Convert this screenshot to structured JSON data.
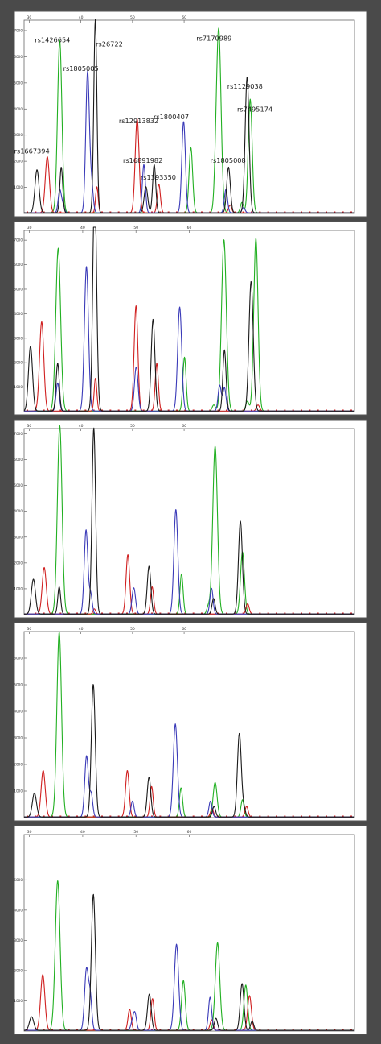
{
  "colors": {
    "black": "#1a1a1a",
    "blue": "#3a3ab8",
    "green": "#22b022",
    "red": "#d02020",
    "frame": "#555555",
    "page_bg": "#4a4a4a"
  },
  "chart_data": [
    {
      "type": "line",
      "panel": 1,
      "xlim": [
        29,
        93
      ],
      "ylim": [
        0,
        7400
      ],
      "x_ticks": [
        "30",
        "40",
        "50",
        "60"
      ],
      "y_ticks": [
        "1000",
        "2000",
        "3000",
        "4000",
        "5000",
        "6000",
        "7000"
      ],
      "labels": [
        {
          "text": "rs1667394",
          "x": 30.5,
          "y": 2300
        },
        {
          "text": "rs1426654",
          "x": 34.5,
          "y": 6550
        },
        {
          "text": "rs1805005",
          "x": 40,
          "y": 5450
        },
        {
          "text": "rs26722",
          "x": 45.5,
          "y": 6400
        },
        {
          "text": "rs12913832",
          "x": 51.2,
          "y": 3450
        },
        {
          "text": "rs16891982",
          "x": 52,
          "y": 1950
        },
        {
          "text": "rs1393350",
          "x": 55,
          "y": 1300
        },
        {
          "text": "rs1800407",
          "x": 57.5,
          "y": 3600
        },
        {
          "text": "rs7170989",
          "x": 65.8,
          "y": 6620
        },
        {
          "text": "rs1805008",
          "x": 68.5,
          "y": 1950
        },
        {
          "text": "rs1129038",
          "x": 71.8,
          "y": 4780
        },
        {
          "text": "rs7495174",
          "x": 73.7,
          "y": 3900
        }
      ],
      "series": [
        {
          "color": "black",
          "peaks": [
            [
              31.5,
              1650,
              0.4
            ],
            [
              36.2,
              1750,
              0.28
            ],
            [
              42.8,
              7400,
              0.3
            ],
            [
              52.6,
              1000,
              0.35
            ],
            [
              54.2,
              1850,
              0.3
            ],
            [
              68.6,
              1750,
              0.35
            ],
            [
              72.2,
              5200,
              0.38
            ]
          ]
        },
        {
          "color": "blue",
          "peaks": [
            [
              35.9,
              850,
              0.3
            ],
            [
              36.5,
              300,
              0.3
            ],
            [
              41.3,
              5400,
              0.35
            ],
            [
              42.1,
              1000,
              0.3
            ],
            [
              52.2,
              1850,
              0.3
            ],
            [
              59.9,
              3500,
              0.35
            ],
            [
              68.1,
              900,
              0.3
            ],
            [
              71.5,
              200,
              0.3
            ]
          ]
        },
        {
          "color": "green",
          "peaks": [
            [
              35.9,
              6600,
              0.42
            ],
            [
              61.3,
              2500,
              0.35
            ],
            [
              66.7,
              7000,
              0.45
            ],
            [
              66.1,
              500,
              0.3
            ],
            [
              72.8,
              4350,
              0.38
            ],
            [
              71.2,
              400,
              0.3
            ]
          ]
        },
        {
          "color": "red",
          "peaks": [
            [
              33.5,
              2150,
              0.4
            ],
            [
              43.1,
              1000,
              0.25
            ],
            [
              50.9,
              3600,
              0.38
            ],
            [
              55.1,
              1100,
              0.3
            ],
            [
              68.9,
              300,
              0.3
            ]
          ]
        }
      ]
    },
    {
      "type": "line",
      "panel": 2,
      "xlim": [
        29,
        91
      ],
      "ylim": [
        0,
        7400
      ],
      "x_ticks": [
        "30",
        "40",
        "50",
        "60"
      ],
      "y_ticks": [
        "1000",
        "2000",
        "3000",
        "4000",
        "5000",
        "6000",
        "7000"
      ],
      "series": [
        {
          "color": "black",
          "peaks": [
            [
              30.2,
              2650,
              0.38
            ],
            [
              35.3,
              1950,
              0.3
            ],
            [
              42.3,
              7250,
              0.35
            ],
            [
              42.1,
              2500,
              0.3
            ],
            [
              53.2,
              3750,
              0.35
            ],
            [
              66.6,
              2500,
              0.3
            ],
            [
              71.6,
              5300,
              0.4
            ]
          ]
        },
        {
          "color": "blue",
          "peaks": [
            [
              35.3,
              1150,
              0.3
            ],
            [
              40.7,
              5900,
              0.38
            ],
            [
              49.9,
              1050,
              0.3
            ],
            [
              50.2,
              1000,
              0.3
            ],
            [
              58.2,
              4250,
              0.38
            ],
            [
              65.7,
              1050,
              0.3
            ],
            [
              66.6,
              950,
              0.3
            ]
          ]
        },
        {
          "color": "green",
          "peaks": [
            [
              35.4,
              6650,
              0.45
            ],
            [
              59.1,
              2200,
              0.3
            ],
            [
              66.5,
              7000,
              0.45
            ],
            [
              72.5,
              7050,
              0.4
            ],
            [
              64.6,
              250,
              0.3
            ],
            [
              70.9,
              400,
              0.3
            ]
          ]
        },
        {
          "color": "red",
          "peaks": [
            [
              32.3,
              3650,
              0.4
            ],
            [
              42.4,
              1350,
              0.25
            ],
            [
              50.0,
              4300,
              0.35
            ],
            [
              53.9,
              1950,
              0.3
            ],
            [
              72.9,
              250,
              0.3
            ]
          ]
        }
      ]
    },
    {
      "type": "line",
      "panel": 3,
      "xlim": [
        29,
        93
      ],
      "ylim": [
        0,
        7200
      ],
      "x_ticks": [
        "30",
        "40",
        "50",
        "60"
      ],
      "y_ticks": [
        "1000",
        "2000",
        "3000",
        "4000",
        "5000",
        "6000",
        "7000"
      ],
      "series": [
        {
          "color": "black",
          "peaks": [
            [
              30.8,
              1350,
              0.4
            ],
            [
              35.8,
              1050,
              0.28
            ],
            [
              42.5,
              7200,
              0.35
            ],
            [
              53.2,
              1850,
              0.35
            ],
            [
              65.7,
              600,
              0.3
            ],
            [
              70.9,
              3600,
              0.38
            ]
          ]
        },
        {
          "color": "blue",
          "peaks": [
            [
              41.0,
              3250,
              0.35
            ],
            [
              41.9,
              750,
              0.3
            ],
            [
              50.1,
              600,
              0.3
            ],
            [
              50.4,
              550,
              0.3
            ],
            [
              58.4,
              4050,
              0.38
            ],
            [
              65.3,
              1000,
              0.3
            ]
          ]
        },
        {
          "color": "green",
          "peaks": [
            [
              35.9,
              7300,
              0.45
            ],
            [
              59.5,
              1550,
              0.3
            ],
            [
              66.0,
              6500,
              0.45
            ],
            [
              71.3,
              2400,
              0.38
            ],
            [
              64.7,
              300,
              0.3
            ]
          ]
        },
        {
          "color": "red",
          "peaks": [
            [
              32.9,
              1800,
              0.4
            ],
            [
              42.6,
              200,
              0.25
            ],
            [
              49.1,
              2300,
              0.35
            ],
            [
              53.8,
              1050,
              0.3
            ],
            [
              72.3,
              400,
              0.3
            ]
          ]
        }
      ]
    },
    {
      "type": "line",
      "panel": 4,
      "xlim": [
        29,
        93
      ],
      "ylim": [
        0,
        7000
      ],
      "x_ticks": [
        "30",
        "40",
        "50",
        "60"
      ],
      "y_ticks": [
        "1000",
        "2000",
        "3000",
        "4000",
        "5000",
        "6000"
      ],
      "series": [
        {
          "color": "black",
          "peaks": [
            [
              31.0,
              900,
              0.4
            ],
            [
              42.4,
              5000,
              0.38
            ],
            [
              53.2,
              1500,
              0.35
            ],
            [
              65.8,
              400,
              0.3
            ],
            [
              70.7,
              3150,
              0.38
            ],
            [
              71.6,
              300,
              0.3
            ]
          ]
        },
        {
          "color": "blue",
          "peaks": [
            [
              41.1,
              2300,
              0.35
            ],
            [
              42.0,
              850,
              0.3
            ],
            [
              50.0,
              600,
              0.3
            ],
            [
              58.3,
              3500,
              0.4
            ],
            [
              65.1,
              600,
              0.3
            ]
          ]
        },
        {
          "color": "green",
          "peaks": [
            [
              35.8,
              6950,
              0.45
            ],
            [
              59.4,
              1100,
              0.3
            ],
            [
              66.0,
              1300,
              0.38
            ],
            [
              71.3,
              650,
              0.3
            ]
          ]
        },
        {
          "color": "red",
          "peaks": [
            [
              32.7,
              1750,
              0.4
            ],
            [
              49.0,
              1750,
              0.35
            ],
            [
              53.7,
              1150,
              0.3
            ],
            [
              72.1,
              400,
              0.3
            ],
            [
              65.4,
              300,
              0.3
            ]
          ]
        }
      ]
    },
    {
      "type": "line",
      "panel": 5,
      "xlim": [
        29,
        91
      ],
      "ylim": [
        0,
        6500
      ],
      "x_ticks": [
        "30",
        "40",
        "50",
        "60"
      ],
      "y_ticks": [
        "1000",
        "2000",
        "3000",
        "4000",
        "5000"
      ],
      "series": [
        {
          "color": "black",
          "peaks": [
            [
              30.4,
              450,
              0.4
            ],
            [
              42.0,
              4500,
              0.38
            ],
            [
              52.5,
              1200,
              0.35
            ],
            [
              65.0,
              400,
              0.3
            ],
            [
              69.9,
              1550,
              0.35
            ],
            [
              71.8,
              300,
              0.3
            ]
          ]
        },
        {
          "color": "blue",
          "peaks": [
            [
              40.7,
              2000,
              0.35
            ],
            [
              41.4,
              1100,
              0.3
            ],
            [
              49.8,
              550,
              0.3
            ],
            [
              57.6,
              2850,
              0.4
            ],
            [
              63.9,
              1100,
              0.3
            ],
            [
              49.3,
              250,
              0.3
            ]
          ]
        },
        {
          "color": "green",
          "peaks": [
            [
              35.3,
              4950,
              0.45
            ],
            [
              58.9,
              1650,
              0.35
            ],
            [
              65.3,
              2900,
              0.42
            ],
            [
              70.6,
              1500,
              0.35
            ]
          ]
        },
        {
          "color": "red",
          "peaks": [
            [
              32.5,
              1850,
              0.4
            ],
            [
              48.8,
              700,
              0.3
            ],
            [
              53.1,
              1050,
              0.3
            ],
            [
              71.3,
              1150,
              0.35
            ],
            [
              64.2,
              350,
              0.3
            ]
          ]
        }
      ]
    }
  ]
}
